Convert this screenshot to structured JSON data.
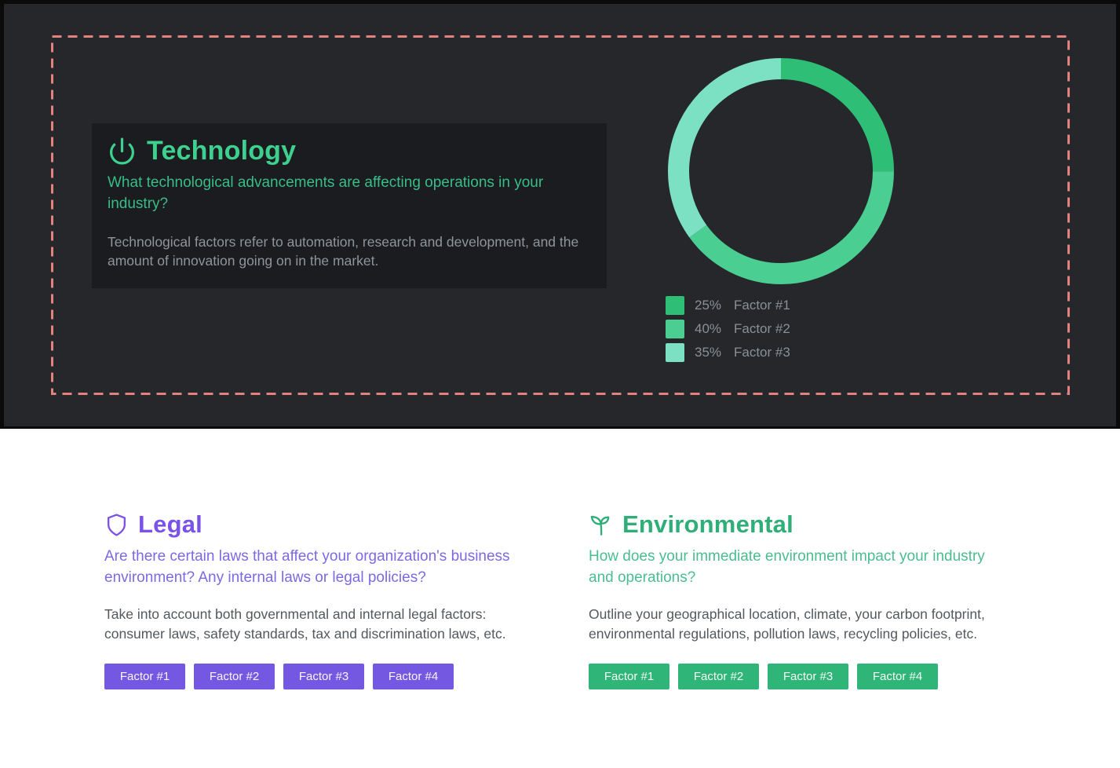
{
  "panel": {
    "background": "#26272b",
    "frame_color": "#0a0a0b",
    "dashed_border_color": "#e2817d",
    "card": {
      "background": "#1a1c1f",
      "icon": "power-icon",
      "accent": "#3ed08f",
      "title": "Technology",
      "question": "What technological advancements are affecting operations in your industry?",
      "description": "Technological factors refer to automation, research and development, and the amount of innovation going on in the market."
    }
  },
  "chart_data": {
    "type": "pie",
    "variant": "donut",
    "start_angle": "top",
    "direction": "clockwise",
    "legend_position": "below-left",
    "legend_text_color": "#8a9096",
    "segments": [
      {
        "label": "Factor #1",
        "value": 25,
        "pct_label": "25%",
        "color": "#2fbe75"
      },
      {
        "label": "Factor #2",
        "value": 40,
        "pct_label": "40%",
        "color": "#4bce92"
      },
      {
        "label": "Factor #3",
        "value": 35,
        "pct_label": "35%",
        "color": "#7ce0c2"
      }
    ]
  },
  "sections": {
    "legal": {
      "icon": "shield-icon",
      "accent": "#7b52e8",
      "button_color": "#7558e2",
      "title": "Legal",
      "question": "Are there certain laws that affect your organization's business environment? Any internal laws or legal policies?",
      "description": "Take into account both governmental and internal legal factors: consumer laws, safety standards, tax and discrimination laws, etc.",
      "factors": [
        "Factor #1",
        "Factor #2",
        "Factor #3",
        "Factor #4"
      ]
    },
    "environmental": {
      "icon": "sprout-icon",
      "accent": "#2fae77",
      "button_color": "#2fb578",
      "title": "Environmental",
      "question": "How does your immediate environment impact your industry and operations?",
      "description": "Outline your geographical location, climate, your carbon footprint, environmental regulations, pollution laws, recycling policies, etc.",
      "factors": [
        "Factor #1",
        "Factor #2",
        "Factor #3",
        "Factor #4"
      ]
    }
  }
}
